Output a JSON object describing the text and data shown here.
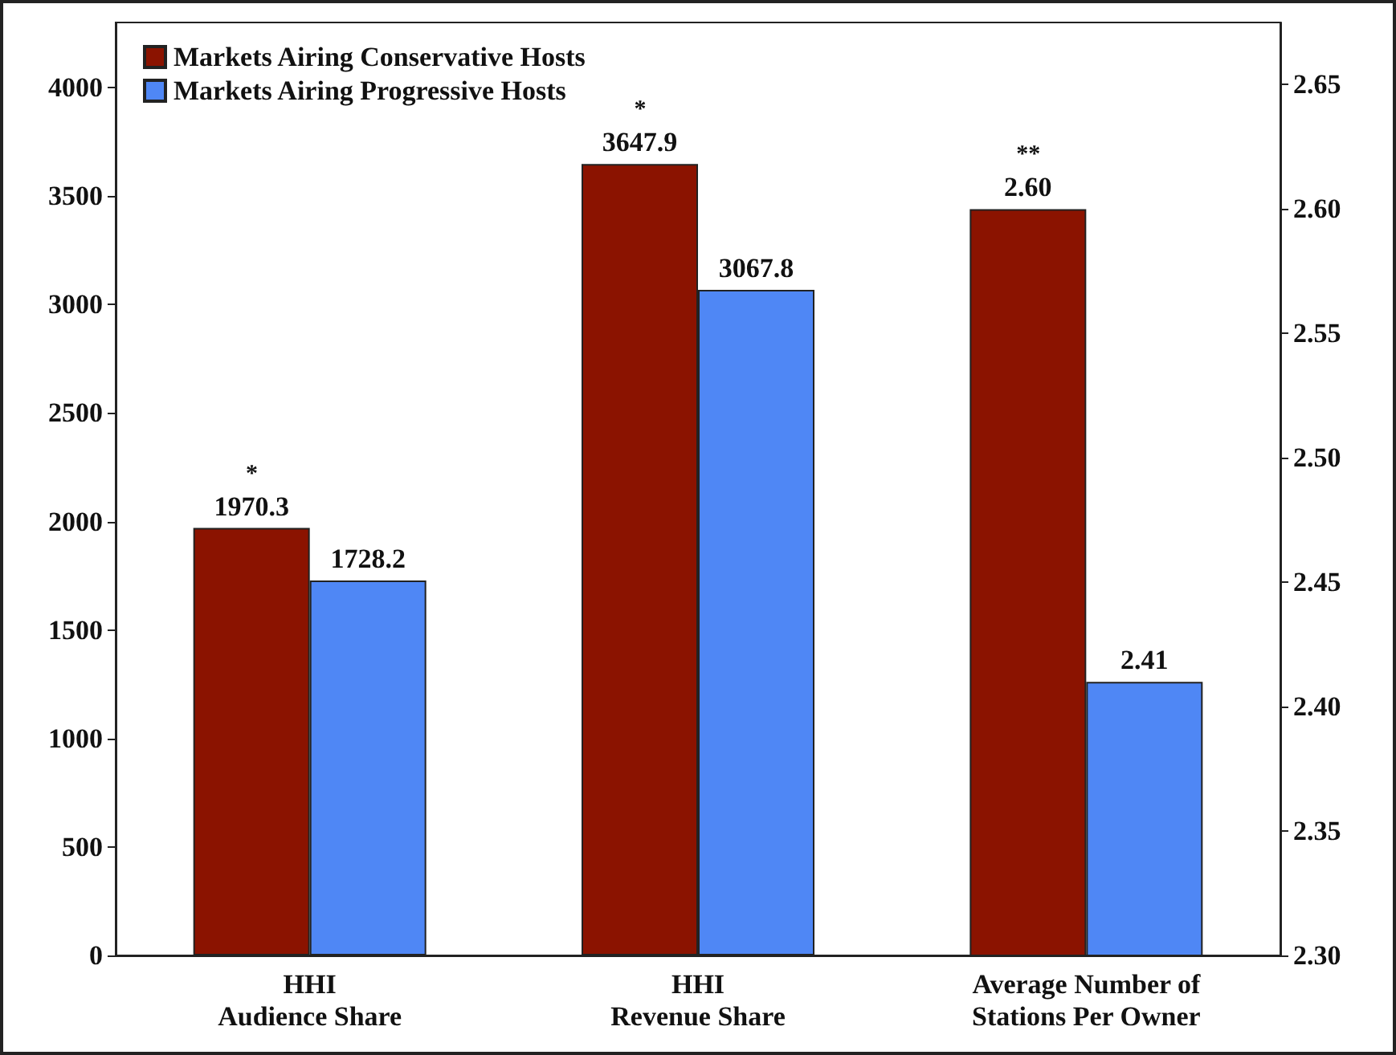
{
  "chart_data": {
    "type": "bar",
    "categories": [
      "HHI\nAudience Share",
      "HHI\nRevenue Share",
      "Average Number of\nStations Per Owner"
    ],
    "series": [
      {
        "name": "Markets Airing Conservative Hosts",
        "color": "#8b1300",
        "values": [
          1970.3,
          3647.9,
          null
        ],
        "value_labels": [
          "1970.3",
          "3647.9",
          null
        ]
      },
      {
        "name": "Markets Airing Progressive Hosts",
        "color": "#4f87f5",
        "values": [
          1728.2,
          3067.8,
          null
        ],
        "value_labels": [
          "1728.2",
          "3067.8",
          null
        ]
      },
      {
        "color": "#8b1300",
        "axis": "y2",
        "values": [
          null,
          null,
          2.6
        ],
        "value_labels": [
          null,
          null,
          "2.60"
        ]
      },
      {
        "color": "#4f87f5",
        "axis": "y2",
        "values": [
          null,
          null,
          2.41
        ],
        "value_labels": [
          null,
          null,
          "2.41"
        ]
      }
    ],
    "ylim": [
      0,
      4300
    ],
    "yticks": [
      0,
      500,
      1000,
      1500,
      2000,
      2500,
      3000,
      3500,
      4000
    ],
    "y2lim": [
      2.3,
      2.675
    ],
    "y2ticks": [
      {
        "value": 2.3,
        "label": "2.30"
      },
      2.35,
      {
        "value": 2.4,
        "label": "2.40"
      },
      2.45,
      {
        "value": 2.5,
        "label": "2.50"
      },
      2.55,
      {
        "value": 2.6,
        "label": "2.60"
      },
      2.65
    ],
    "annotations": [
      {
        "text": "*",
        "x": "HHI\nAudience Share",
        "y": 1970.3
      },
      {
        "text": "*",
        "x": "HHI\nRevenue Share",
        "y": 3647.9
      },
      "**"
    ],
    "grid": false,
    "legend": "top left"
  }
}
